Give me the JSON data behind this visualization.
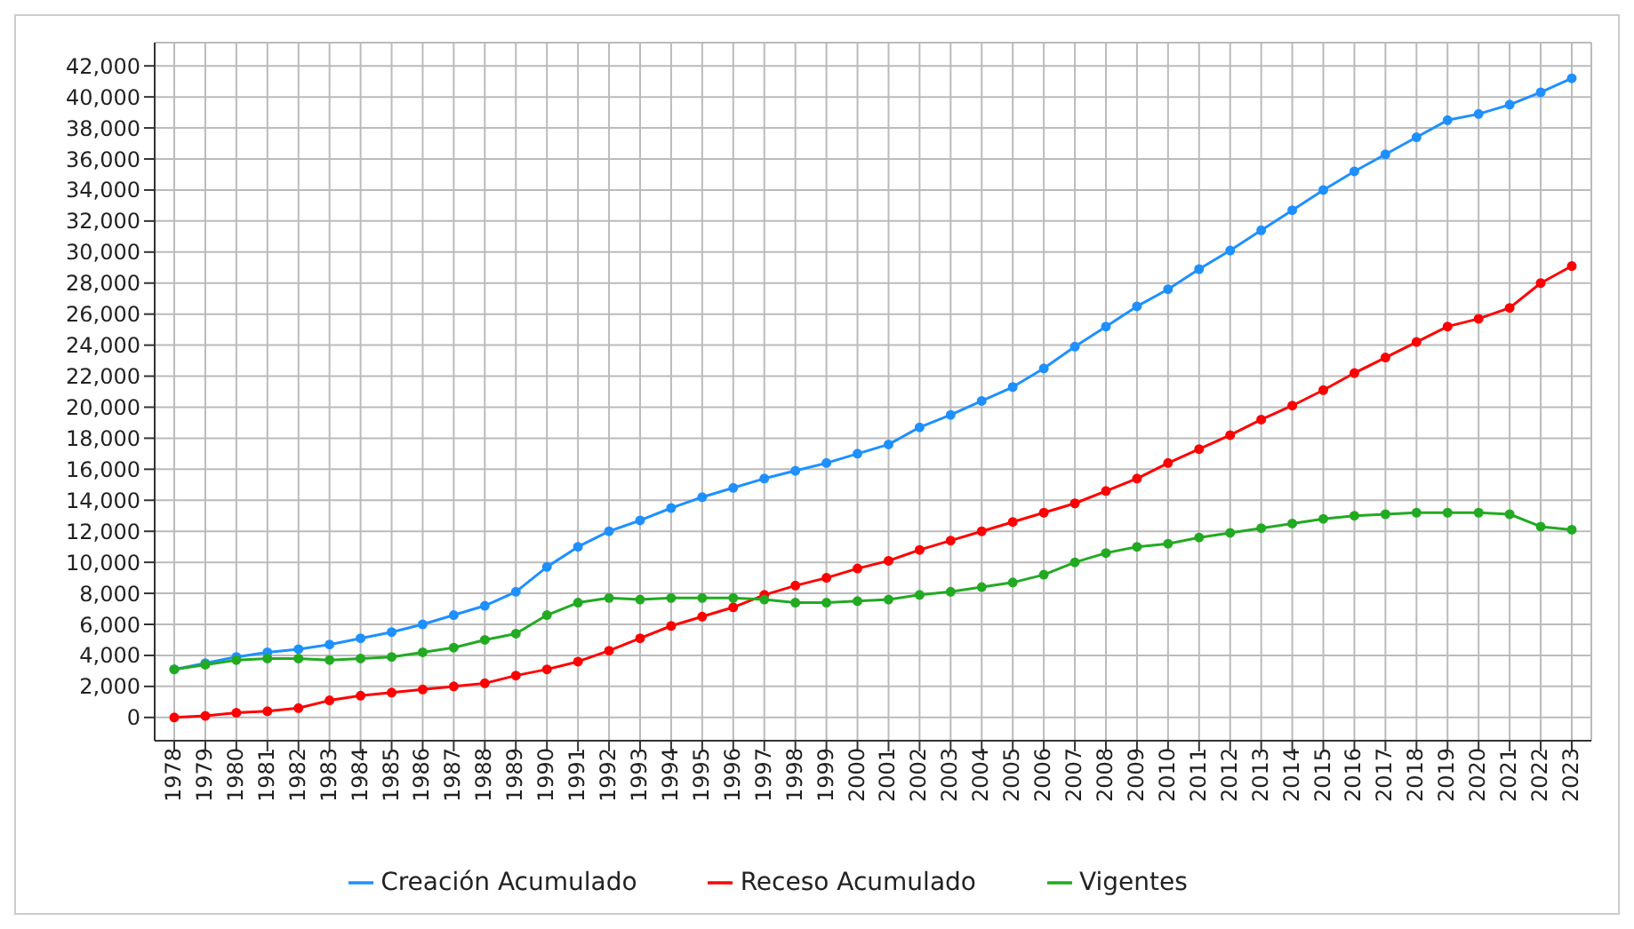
{
  "chart_data": {
    "type": "line",
    "categories": [
      "1978",
      "1979",
      "1980",
      "1981",
      "1982",
      "1983",
      "1984",
      "1985",
      "1986",
      "1987",
      "1988",
      "1989",
      "1990",
      "1991",
      "1992",
      "1993",
      "1994",
      "1995",
      "1996",
      "1997",
      "1998",
      "1999",
      "2000",
      "2001",
      "2002",
      "2003",
      "2004",
      "2005",
      "2006",
      "2007",
      "2008",
      "2009",
      "2010",
      "2011",
      "2012",
      "2013",
      "2014",
      "2015",
      "2016",
      "2017",
      "2018",
      "2019",
      "2020",
      "2021",
      "2022",
      "2023"
    ],
    "series": [
      {
        "name": "Creación Acumulado",
        "color": "#1e90ff",
        "values": [
          3100,
          3500,
          3900,
          4200,
          4400,
          4700,
          5100,
          5500,
          6000,
          6600,
          7200,
          8100,
          9700,
          11000,
          12000,
          12700,
          13500,
          14200,
          14800,
          15400,
          15900,
          16400,
          17000,
          17600,
          18700,
          19500,
          20400,
          21300,
          22500,
          23900,
          25200,
          26500,
          27600,
          28900,
          30100,
          31400,
          32700,
          34000,
          35200,
          36300,
          37400,
          38500,
          38900,
          39500,
          40300,
          41200
        ]
      },
      {
        "name": "Receso Acumulado",
        "color": "#ff0000",
        "values": [
          0,
          100,
          300,
          400,
          600,
          1100,
          1400,
          1600,
          1800,
          2000,
          2200,
          2700,
          3100,
          3600,
          4300,
          5100,
          5900,
          6500,
          7100,
          7900,
          8500,
          9000,
          9600,
          10100,
          10800,
          11400,
          12000,
          12600,
          13200,
          13800,
          14600,
          15400,
          16400,
          17300,
          18200,
          19200,
          20100,
          21100,
          22200,
          23200,
          24200,
          25200,
          25700,
          26400,
          28000,
          29100
        ]
      },
      {
        "name": "Vigentes",
        "color": "#22aa22",
        "values": [
          3100,
          3400,
          3700,
          3800,
          3800,
          3700,
          3800,
          3900,
          4200,
          4500,
          5000,
          5400,
          6600,
          7400,
          7700,
          7600,
          7700,
          7700,
          7700,
          7600,
          7400,
          7400,
          7500,
          7600,
          7900,
          8100,
          8400,
          8700,
          9200,
          10000,
          10600,
          11000,
          11200,
          11600,
          11900,
          12200,
          12500,
          12800,
          13000,
          13100,
          13200,
          13200,
          13200,
          13100,
          12300,
          12100
        ]
      }
    ],
    "ylim": [
      -1500,
      43500
    ],
    "yticks": [
      0,
      {
        "value": 2000,
        "label": "2,000"
      },
      {
        "value": 4000,
        "label": "4,000"
      },
      {
        "value": 6000,
        "label": "6,000"
      },
      {
        "value": 8000,
        "label": "8,000"
      },
      {
        "value": 10000,
        "label": "10,000"
      },
      {
        "value": 12000,
        "label": "12,000"
      },
      {
        "value": 14000,
        "label": "14,000"
      },
      {
        "value": 16000,
        "label": "16,000"
      },
      {
        "value": 18000,
        "label": "18,000"
      },
      {
        "value": 20000,
        "label": "20,000"
      },
      {
        "value": 22000,
        "label": "22,000"
      },
      {
        "value": 24000,
        "label": "24,000"
      },
      {
        "value": 26000,
        "label": "26,000"
      },
      {
        "value": 28000,
        "label": "28,000"
      },
      {
        "value": 30000,
        "label": "30,000"
      },
      {
        "value": 32000,
        "label": "32,000"
      },
      {
        "value": 34000,
        "label": "34,000"
      },
      {
        "value": 36000,
        "label": "36,000"
      },
      {
        "value": 38000,
        "label": "38,000"
      },
      {
        "value": 40000,
        "label": "40,000"
      },
      {
        "value": 42000,
        "label": "42,000"
      }
    ],
    "grid": true,
    "legend": "bottom",
    "marker": "circle",
    "line_style": "solid"
  }
}
